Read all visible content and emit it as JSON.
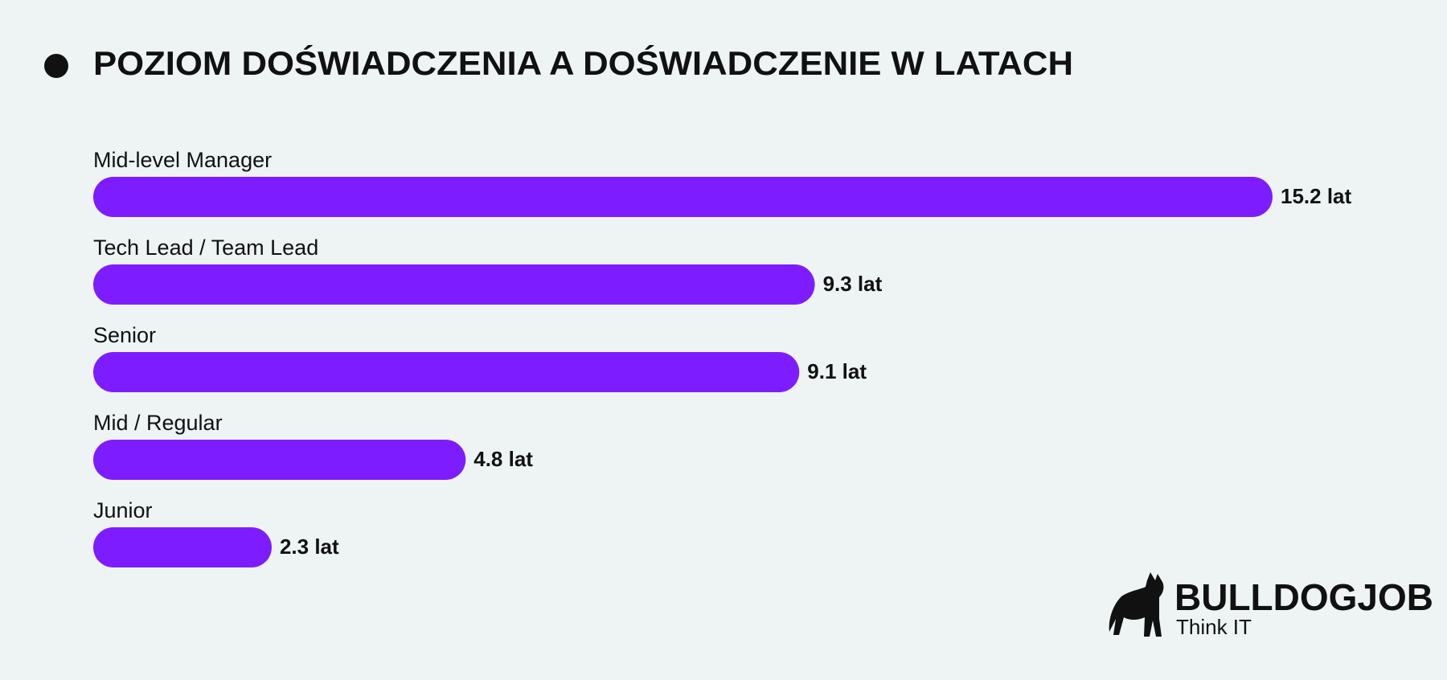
{
  "chart_data": {
    "type": "hbar",
    "title": "POZIOM DOŚWIADCZENIA A DOŚWIADCZENIE W LATACH",
    "categories": [
      "Mid-level Manager",
      "Tech Lead / Team Lead",
      "Senior",
      "Mid / Regular",
      "Junior"
    ],
    "values": [
      15.2,
      9.3,
      9.1,
      4.8,
      2.3
    ],
    "value_labels": [
      "15.2 lat",
      "9.3 lat",
      "9.1 lat",
      "4.8 lat",
      "2.3 lat"
    ],
    "color": "#7d1dff"
  },
  "logo": {
    "name": "BULLDOGJOB",
    "tagline": "Think IT"
  }
}
